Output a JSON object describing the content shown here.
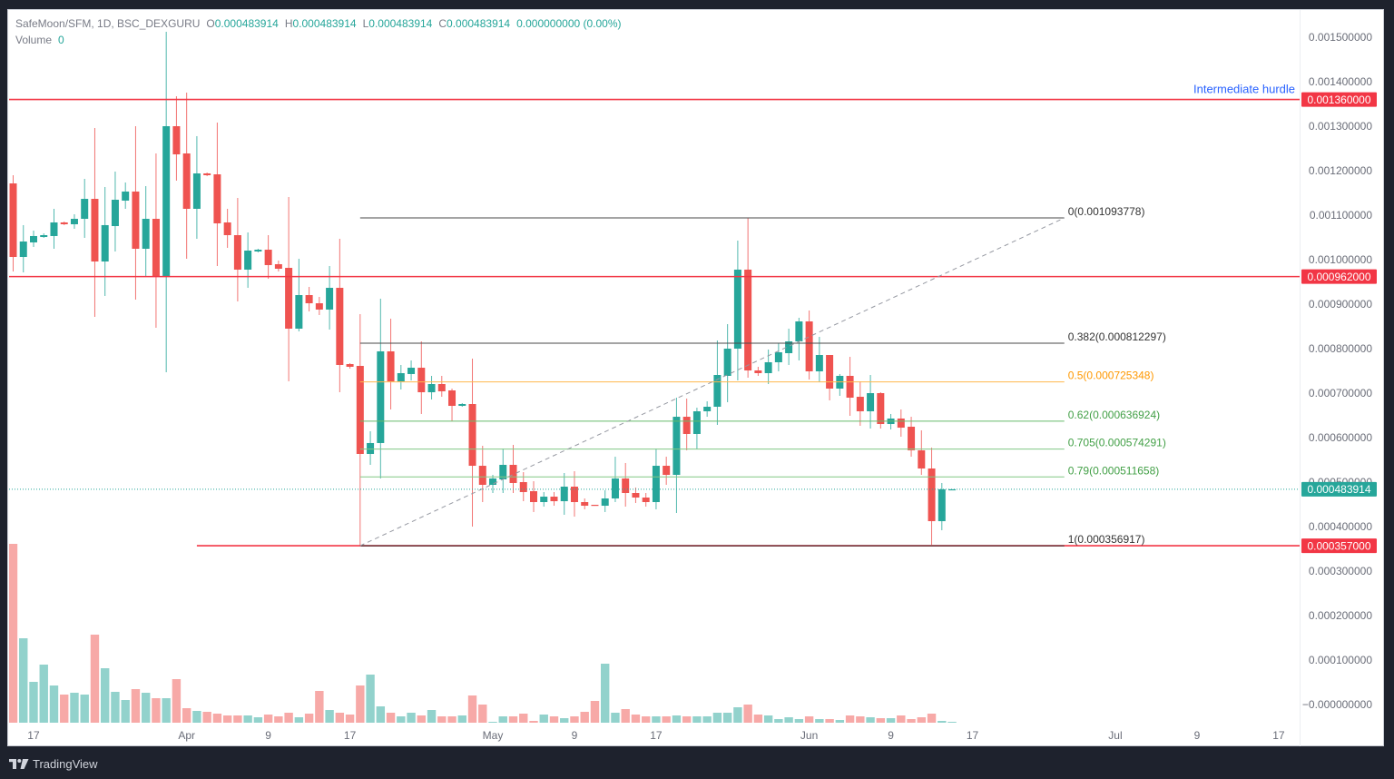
{
  "legend": {
    "symbol": "SafeMoon/SFM, 1D, BSC_DEXGURU",
    "o_label": "O",
    "o_value": "0.000483914",
    "h_label": "H",
    "h_value": "0.000483914",
    "l_label": "L",
    "l_value": "0.000483914",
    "c_label": "C",
    "c_value": "0.000483914",
    "change": "0.000000000 (0.00%)",
    "volume_label": "Volume",
    "volume_value": "0"
  },
  "footer": {
    "brand": "TradingView",
    "logo_icon": "tradingview-logo-icon"
  },
  "colors": {
    "up": "#26a69a",
    "down": "#ef5350",
    "level_line": "#f23645",
    "annotation": "#2962ff",
    "axis_text": "#6a6d78",
    "frame": "#1e222d"
  },
  "chart_data": {
    "type": "candlestick",
    "title": "SafeMoon/SFM, 1D, BSC_DEXGURU",
    "xlabel": "",
    "ylabel": "",
    "ylim": [
      0,
      0.0015
    ],
    "grid": false,
    "x_axis": {
      "ticks": [
        {
          "label": "17",
          "index": 2
        },
        {
          "label": "Apr",
          "index": 17
        },
        {
          "label": "9",
          "index": 25
        },
        {
          "label": "17",
          "index": 33
        },
        {
          "label": "May",
          "index": 47
        },
        {
          "label": "9",
          "index": 55
        },
        {
          "label": "17",
          "index": 63
        },
        {
          "label": "Jun",
          "index": 78
        },
        {
          "label": "9",
          "index": 86
        },
        {
          "label": "17",
          "index": 94
        },
        {
          "label": "Jul",
          "index": 108
        },
        {
          "label": "9",
          "index": 116
        },
        {
          "label": "17",
          "index": 124
        }
      ]
    },
    "y_axis": {
      "ticks": [
        {
          "value": 0.0015,
          "label": "0.001500000"
        },
        {
          "value": 0.0014,
          "label": "0.001400000"
        },
        {
          "value": 0.0013,
          "label": "0.001300000"
        },
        {
          "value": 0.0012,
          "label": "0.001200000"
        },
        {
          "value": 0.0011,
          "label": "0.001100000"
        },
        {
          "value": 0.001,
          "label": "0.001000000"
        },
        {
          "value": 0.0009,
          "label": "0.000900000"
        },
        {
          "value": 0.0008,
          "label": "0.000800000"
        },
        {
          "value": 0.0007,
          "label": "0.000700000"
        },
        {
          "value": 0.0006,
          "label": "0.000600000"
        },
        {
          "value": 0.0005,
          "label": "0.000500000"
        },
        {
          "value": 0.0004,
          "label": "0.000400000"
        },
        {
          "value": 0.0003,
          "label": "0.000300000"
        },
        {
          "value": 0.0002,
          "label": "0.000200000"
        },
        {
          "value": 0.0001,
          "label": "0.000100000"
        },
        {
          "value": 0.0,
          "label": "−0.000000000"
        }
      ]
    },
    "candle_fields": [
      "date",
      "open",
      "high",
      "low",
      "close",
      "volume_relative"
    ],
    "candles": [
      [
        "Mar 15",
        0.0011714,
        0.0011898,
        0.0009735,
        0.0010061,
        197
      ],
      [
        "Mar 16",
        0.0010061,
        0.0010776,
        0.0009714,
        0.0010408,
        93
      ],
      [
        "Mar 17",
        0.0010388,
        0.0010653,
        0.0010286,
        0.0010531,
        45
      ],
      [
        "Mar 18",
        0.001051,
        0.0010592,
        0.001049,
        0.0010551,
        64
      ],
      [
        "Mar 19",
        0.0010531,
        0.0011143,
        0.0010245,
        0.0010837,
        41
      ],
      [
        "Mar 20",
        0.0010837,
        0.0010857,
        0.0010776,
        0.0010796,
        31
      ],
      [
        "Mar 21",
        0.0010796,
        0.001102,
        0.0010694,
        0.0010918,
        33
      ],
      [
        "Mar 22",
        0.0010918,
        0.0011816,
        0.001049,
        0.0011367,
        31
      ],
      [
        "Mar 23",
        0.0011367,
        0.0012959,
        0.0008714,
        0.0009959,
        97
      ],
      [
        "Mar 24",
        0.0009959,
        0.0011633,
        0.0009184,
        0.0010776,
        60
      ],
      [
        "Mar 25",
        0.0010755,
        0.001198,
        0.0010184,
        0.0011347,
        34
      ],
      [
        "Mar 26",
        0.0011327,
        0.0011735,
        0.0011143,
        0.0011531,
        25
      ],
      [
        "Mar 27",
        0.0011531,
        0.0013,
        0.0009102,
        0.0010245,
        37
      ],
      [
        "Mar 28",
        0.0010245,
        0.0011653,
        0.0009612,
        0.0010918,
        33
      ],
      [
        "Mar 29",
        0.0010918,
        0.0012388,
        0.0008469,
        0.0009612,
        27
      ],
      [
        "Mar 30",
        0.0009612,
        0.0015122,
        0.0007469,
        0.0013,
        27
      ],
      [
        "Mar 31",
        0.0013,
        0.0013673,
        0.0011776,
        0.0012367,
        48
      ],
      [
        "Apr 1",
        0.0012388,
        0.0013755,
        0.001002,
        0.0011143,
        16
      ],
      [
        "Apr 2",
        0.0011143,
        0.0012776,
        0.0010469,
        0.0011939,
        13
      ],
      [
        "Apr 3",
        0.0011939,
        0.0011959,
        0.0011878,
        0.0011898,
        12
      ],
      [
        "Apr 4",
        0.0011918,
        0.0013082,
        0.0009857,
        0.0010816,
        10
      ],
      [
        "Apr 5",
        0.0010837,
        0.0011143,
        0.0010265,
        0.0010551,
        8
      ],
      [
        "Apr 6",
        0.0010551,
        0.0011388,
        0.0009061,
        0.0009776,
        8
      ],
      [
        "Apr 7",
        0.0009776,
        0.0010612,
        0.0009367,
        0.0010204,
        8
      ],
      [
        "Apr 8",
        0.0010184,
        0.0010245,
        0.0010163,
        0.0010224,
        6
      ],
      [
        "Apr 9",
        0.0010224,
        0.0010551,
        0.0009571,
        0.0009878,
        9
      ],
      [
        "Apr 10",
        0.0009898,
        0.000998,
        0.0009735,
        0.0009796,
        7
      ],
      [
        "Apr 11",
        0.0009816,
        0.0011408,
        0.0007265,
        0.0008449,
        11
      ],
      [
        "Apr 12",
        0.0008449,
        0.001002,
        0.0008388,
        0.0009204,
        6
      ],
      [
        "Apr 13",
        0.0009204,
        0.0009388,
        0.0008837,
        0.000902,
        10
      ],
      [
        "Apr 14",
        0.000902,
        0.0009163,
        0.0008755,
        0.0008878,
        35
      ],
      [
        "Apr 15",
        0.0008878,
        0.0009857,
        0.0008429,
        0.0009367,
        14
      ],
      [
        "Apr 16",
        0.0009367,
        0.0010469,
        0.000702,
        0.0007633,
        11
      ],
      [
        "Apr 17",
        0.0007653,
        0.0007673,
        0.0007551,
        0.0007592,
        9
      ],
      [
        "Apr 18",
        0.0007612,
        0.0008776,
        0.0003569,
        0.0005633,
        41
      ],
      [
        "Apr 19",
        0.0005633,
        0.0006143,
        0.0005388,
        0.0005878,
        53
      ],
      [
        "Apr 20",
        0.0005878,
        0.0009122,
        0.0005082,
        0.0007939,
        18
      ],
      [
        "Apr 21",
        0.0007939,
        0.0008673,
        0.0006633,
        0.0007265,
        11
      ],
      [
        "Apr 22",
        0.0007265,
        0.0007633,
        0.0007082,
        0.0007449,
        7
      ],
      [
        "Apr 23",
        0.0007429,
        0.0007735,
        0.0007286,
        0.0007571,
        11
      ],
      [
        "Apr 24",
        0.0007571,
        0.0008163,
        0.0006531,
        0.000702,
        8
      ],
      [
        "Apr 25",
        0.000702,
        0.0007388,
        0.0006857,
        0.0007204,
        14
      ],
      [
        "Apr 26",
        0.0007204,
        0.0007388,
        0.0006918,
        0.0007041,
        7
      ],
      [
        "Apr 27",
        0.0007061,
        0.0007102,
        0.0006367,
        0.0006714,
        7
      ],
      [
        "Apr 28",
        0.0006714,
        0.0006776,
        0.0006694,
        0.0006755,
        8
      ],
      [
        "Apr 29",
        0.0006755,
        0.0007776,
        0.0004,
        0.0005367,
        30
      ],
      [
        "Apr 30",
        0.0005367,
        0.0005816,
        0.0004551,
        0.0004939,
        20
      ],
      [
        "May 1",
        0.0004939,
        0.0005163,
        0.0004755,
        0.0005082,
        1
      ],
      [
        "May 2",
        0.0005061,
        0.0005755,
        0.0004755,
        0.0005388,
        7
      ],
      [
        "May 3",
        0.0005388,
        0.0005837,
        0.0004755,
        0.000498,
        7
      ],
      [
        "May 4",
        0.0005,
        0.0005224,
        0.0004571,
        0.0004776,
        10
      ],
      [
        "May 5",
        0.0004796,
        0.000502,
        0.0004327,
        0.0004551,
        2
      ],
      [
        "May 6",
        0.0004551,
        0.0004776,
        0.0004449,
        0.0004673,
        9
      ],
      [
        "May 7",
        0.0004673,
        0.0004776,
        0.0004469,
        0.0004571,
        7
      ],
      [
        "May 8",
        0.0004571,
        0.0005204,
        0.0004265,
        0.0004898,
        5
      ],
      [
        "May 9",
        0.0004898,
        0.0005245,
        0.0004224,
        0.0004551,
        7
      ],
      [
        "May 10",
        0.0004551,
        0.0004633,
        0.0004388,
        0.0004469,
        12
      ],
      [
        "May 11",
        0.000449,
        0.000449,
        0.0004469,
        0.0004469,
        24
      ],
      [
        "May 12",
        0.0004469,
        0.0004816,
        0.0004327,
        0.0004633,
        65
      ],
      [
        "May 13",
        0.0004633,
        0.0005571,
        0.0004551,
        0.0005082,
        11
      ],
      [
        "May 14",
        0.0005082,
        0.0005429,
        0.0004449,
        0.0004755,
        15
      ],
      [
        "May 15",
        0.0004755,
        0.0004878,
        0.0004531,
        0.0004653,
        9
      ],
      [
        "May 16",
        0.0004653,
        0.0004755,
        0.0004449,
        0.0004551,
        7
      ],
      [
        "May 17",
        0.0004551,
        0.0005755,
        0.0004388,
        0.0005367,
        7
      ],
      [
        "May 18",
        0.0005367,
        0.0005571,
        0.0004939,
        0.0005163,
        7
      ],
      [
        "May 19",
        0.0005163,
        0.0006898,
        0.0004306,
        0.0006469,
        8
      ],
      [
        "May 20",
        0.0006469,
        0.0006878,
        0.0005714,
        0.0006082,
        7
      ],
      [
        "May 21",
        0.0006082,
        0.0006673,
        0.0005735,
        0.0006592,
        7
      ],
      [
        "May 22",
        0.0006592,
        0.0006816,
        0.0006469,
        0.0006694,
        7
      ],
      [
        "May 23",
        0.0006694,
        0.0008184,
        0.0006286,
        0.0007408,
        11
      ],
      [
        "May 24",
        0.0007388,
        0.0008551,
        0.0006796,
        0.0008,
        11
      ],
      [
        "May 25",
        0.0008,
        0.0010429,
        0.0007286,
        0.0009776,
        17
      ],
      [
        "May 26",
        0.0009776,
        0.0010938,
        0.0007347,
        0.000751,
        20
      ],
      [
        "May 27",
        0.000751,
        0.0007592,
        0.0007388,
        0.0007449,
        9
      ],
      [
        "May 28",
        0.0007449,
        0.000798,
        0.0007204,
        0.0007694,
        8
      ],
      [
        "May 29",
        0.0007694,
        0.0008122,
        0.000749,
        0.0007918,
        4
      ],
      [
        "May 30",
        0.0007898,
        0.0008449,
        0.0007633,
        0.0008163,
        6
      ],
      [
        "May 31",
        0.0008163,
        0.0008694,
        0.0007735,
        0.0008612,
        4
      ],
      [
        "Jun 1",
        0.0008612,
        0.0008857,
        0.0007306,
        0.000749,
        7
      ],
      [
        "Jun 2",
        0.000749,
        0.0008265,
        0.0007245,
        0.0007857,
        4
      ],
      [
        "Jun 3",
        0.0007857,
        0.0007857,
        0.0006837,
        0.0007102,
        4
      ],
      [
        "Jun 4",
        0.0007102,
        0.0007429,
        0.0006939,
        0.0007388,
        3
      ],
      [
        "Jun 5",
        0.0007388,
        0.0007816,
        0.000649,
        0.0006898,
        8
      ],
      [
        "Jun 6",
        0.0006918,
        0.0007265,
        0.0006265,
        0.0006592,
        7
      ],
      [
        "Jun 7",
        0.0006592,
        0.0007408,
        0.0006204,
        0.0007,
        6
      ],
      [
        "Jun 8",
        0.0007,
        0.000702,
        0.0006204,
        0.0006306,
        5
      ],
      [
        "Jun 9",
        0.0006306,
        0.0006531,
        0.0006184,
        0.0006429,
        5
      ],
      [
        "Jun 10",
        0.0006429,
        0.0006633,
        0.000602,
        0.0006224,
        8
      ],
      [
        "Jun 11",
        0.0006245,
        0.0006469,
        0.0005571,
        0.0005714,
        4
      ],
      [
        "Jun 12",
        0.0005714,
        0.0006163,
        0.0005163,
        0.0005306,
        6
      ],
      [
        "Jun 13",
        0.0005306,
        0.0005776,
        0.0003592,
        0.0004122,
        10
      ],
      [
        "Jun 14",
        0.0004122,
        0.000498,
        0.0003918,
        0.000483914,
        2
      ],
      [
        "Jun 15",
        0.000483914,
        0.000483914,
        0.000483914,
        0.000483914,
        0
      ]
    ],
    "horizontal_levels": [
      {
        "price": 0.00136,
        "label": "0.001360000",
        "from_index": null,
        "annotation": "Intermediate hurdle"
      },
      {
        "price": 0.000962,
        "label": "0.000962000",
        "from_index": null,
        "annotation": ""
      },
      {
        "price": 0.000357,
        "label": "0.000357000",
        "from_index": 18,
        "annotation": ""
      }
    ],
    "fibonacci": {
      "from_index": 34,
      "to_index": 103,
      "levels": [
        {
          "ratio": "0",
          "price": 0.001093778,
          "label": "0(0.001093778)",
          "line_color": "#4a4a4a",
          "text_color": "#333333"
        },
        {
          "ratio": "0.382",
          "price": 0.000812297,
          "label": "0.382(0.000812297)",
          "line_color": "#4a4a4a",
          "text_color": "#333333"
        },
        {
          "ratio": "0.5",
          "price": 0.000725348,
          "label": "0.5(0.000725348)",
          "line_color": "#ffb74d",
          "text_color": "#ff9800"
        },
        {
          "ratio": "0.62",
          "price": 0.000636924,
          "label": "0.62(0.000636924)",
          "line_color": "#66bb6a",
          "text_color": "#43a047"
        },
        {
          "ratio": "0.705",
          "price": 0.000574291,
          "label": "0.705(0.000574291)",
          "line_color": "#81c784",
          "text_color": "#43a047"
        },
        {
          "ratio": "0.79",
          "price": 0.000511658,
          "label": "0.79(0.000511658)",
          "line_color": "#81c784",
          "text_color": "#43a047"
        },
        {
          "ratio": "1",
          "price": 0.000356917,
          "label": "1(0.000356917)",
          "line_color": "#222222",
          "text_color": "#333333"
        }
      ]
    },
    "trend_line": {
      "from_index": 34,
      "from_price": 0.000356917,
      "to_index": 103,
      "to_price": 0.001093778,
      "style": "dashed",
      "color": "#9598a1"
    },
    "last_price": {
      "price": 0.000483914,
      "label": "0.000483914"
    }
  }
}
